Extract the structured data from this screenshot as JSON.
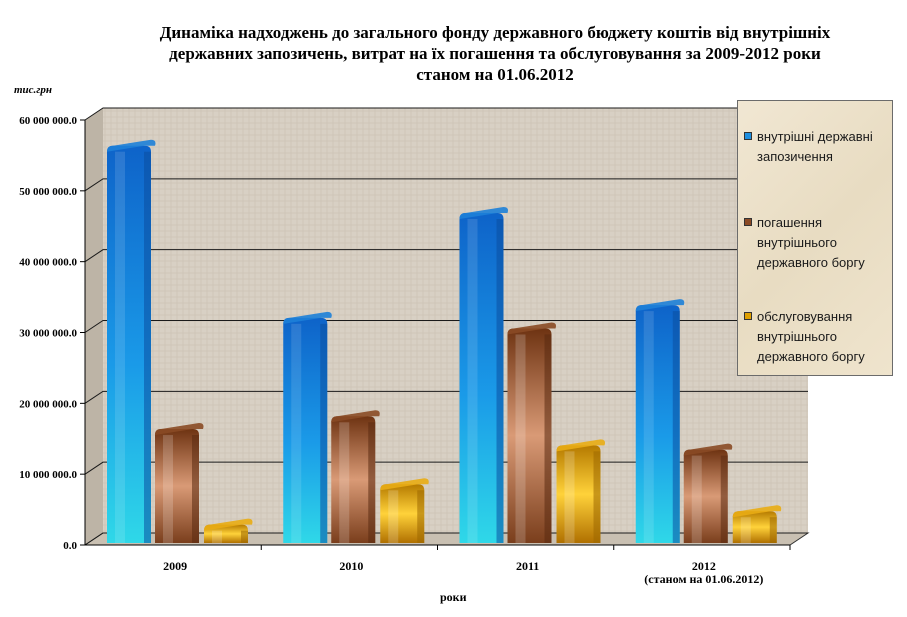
{
  "title_lines": [
    "Динаміка надходжень до загального фонду державного бюджету коштів від внутрішніх",
    "державних запозичень, витрат на їх погашення та обслуговування за 2009-2012 роки",
    "станом на 01.06.2012"
  ],
  "unit_label": "тис.грн",
  "colors": {
    "borrowing": "#1f8fe0",
    "repayment": "#8b4a25",
    "servicing": "#e0a000"
  },
  "chart_data": {
    "type": "bar",
    "title": "Динаміка надходжень до загального фонду державного бюджету коштів від внутрішніх державних запозичень, витрат на їх погашення та обслуговування за 2009-2012 роки станом на 01.06.2012",
    "ylabel": "тис.грн",
    "xlabel": "роки",
    "ylim": [
      0,
      60000000
    ],
    "yticks": [
      "0.0",
      "10 000 000.0",
      "20 000 000.0",
      "30 000 000.0",
      "40 000 000.0",
      "50 000 000.0",
      "60 000 000.0"
    ],
    "categories": [
      [
        "2009"
      ],
      [
        "2010"
      ],
      [
        "2011"
      ],
      [
        "2012",
        "(станом на 01.06.2012)"
      ]
    ],
    "series": [
      {
        "name": "внутрішні державні запозичення",
        "values": [
          57500000,
          33200000,
          48000000,
          35000000
        ]
      },
      {
        "name": "погашення внутрішнього державного боргу",
        "values": [
          17500000,
          19300000,
          31700000,
          14600000
        ]
      },
      {
        "name": "обслуговування внутрішнього державного боргу",
        "values": [
          4000000,
          9700000,
          15200000,
          5900000
        ]
      }
    ],
    "legend_position": "right",
    "grid": true
  },
  "legend": [
    {
      "lines": [
        "внутрішні державні",
        "запозичення"
      ]
    },
    {
      "lines": [
        "погашення",
        "внутрішнього",
        "державного боргу"
      ]
    },
    {
      "lines": [
        "обслуговування",
        "внутрішнього",
        "державного боргу"
      ]
    }
  ]
}
